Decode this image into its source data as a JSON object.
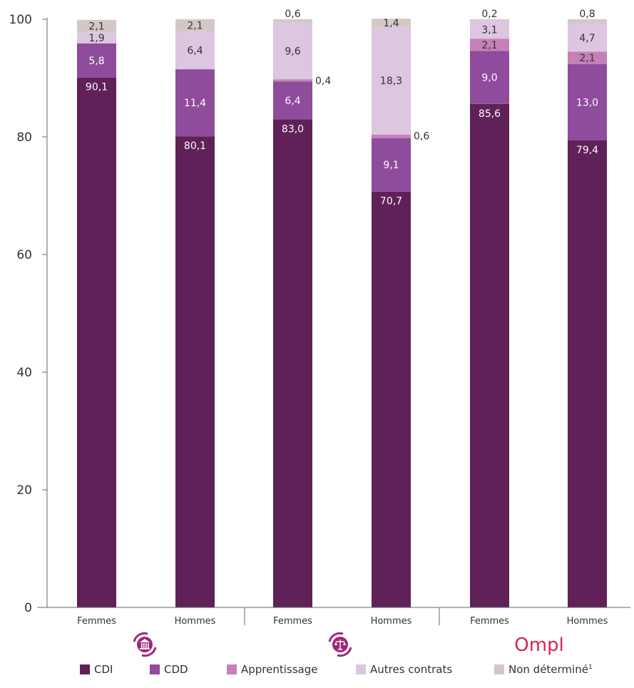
{
  "chart_data": {
    "type": "bar",
    "stacked": true,
    "categories": [
      "Femmes",
      "Hommes",
      "Femmes",
      "Hommes",
      "Femmes",
      "Hommes"
    ],
    "groups": [
      {
        "icon": "bank-building-icon",
        "color": "#a0267a"
      },
      {
        "icon": "balance-scale-icon",
        "color": "#a0267a"
      },
      {
        "text": "Ompl",
        "icon": "ompl-logo",
        "color": "#d7264e"
      }
    ],
    "series": [
      {
        "name": "CDI",
        "color": "#5f2157",
        "values": [
          90.1,
          80.1,
          83.0,
          70.7,
          85.6,
          79.4
        ],
        "labels": [
          "90,1",
          "80,1",
          "83,0",
          "70,7",
          "85,6",
          "79,4"
        ]
      },
      {
        "name": "CDD",
        "color": "#8f4b9c",
        "values": [
          5.8,
          11.4,
          6.4,
          9.1,
          9.0,
          13.0
        ],
        "labels": [
          "5,8",
          "11,4",
          "6,4",
          "9,1",
          "9,0",
          "13,0"
        ]
      },
      {
        "name": "Apprentissage",
        "color": "#c77fb7",
        "values": [
          0.0,
          0.0,
          0.4,
          0.6,
          2.1,
          2.1
        ],
        "labels": [
          "",
          "",
          "0,4",
          "0,6",
          "2,1",
          "2,1"
        ]
      },
      {
        "name": "Autres contrats",
        "color": "#dcc6e0",
        "values": [
          1.9,
          6.4,
          9.6,
          18.3,
          3.1,
          4.7
        ],
        "labels": [
          "1,9",
          "6,4",
          "9,6",
          "18,3",
          "3,1",
          "4,7"
        ]
      },
      {
        "name": "Non déterminé",
        "color": "#d3c8c6",
        "values": [
          2.1,
          2.1,
          0.6,
          1.4,
          0.2,
          0.8
        ],
        "labels": [
          "2,1",
          "2,1",
          "0,6",
          "1,4",
          "0,2",
          "0,8"
        ]
      }
    ],
    "ylim": [
      0,
      100
    ],
    "yticks": [
      0,
      20,
      40,
      60,
      80,
      100
    ],
    "grid": false,
    "legend": {
      "placement": "bottom",
      "footnote_mark": "1"
    }
  }
}
